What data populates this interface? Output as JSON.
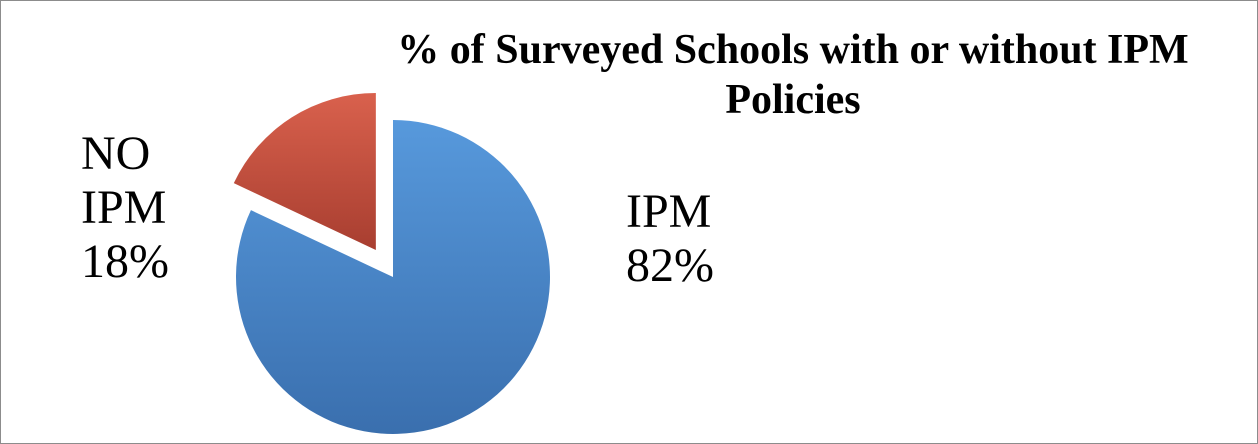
{
  "chart_data": {
    "type": "pie",
    "title_lines": [
      "% of Surveyed Schools with or without IPM",
      "Policies"
    ],
    "slices": [
      {
        "label_lines": [
          "IPM",
          "82%"
        ],
        "value": 82,
        "color": "#4a86c8",
        "exploded": false
      },
      {
        "label_lines": [
          "NO",
          "IPM",
          "18%"
        ],
        "value": 18,
        "color": "#c0504d",
        "exploded": true
      }
    ],
    "start_angle_deg": 0,
    "direction": "clockwise"
  }
}
